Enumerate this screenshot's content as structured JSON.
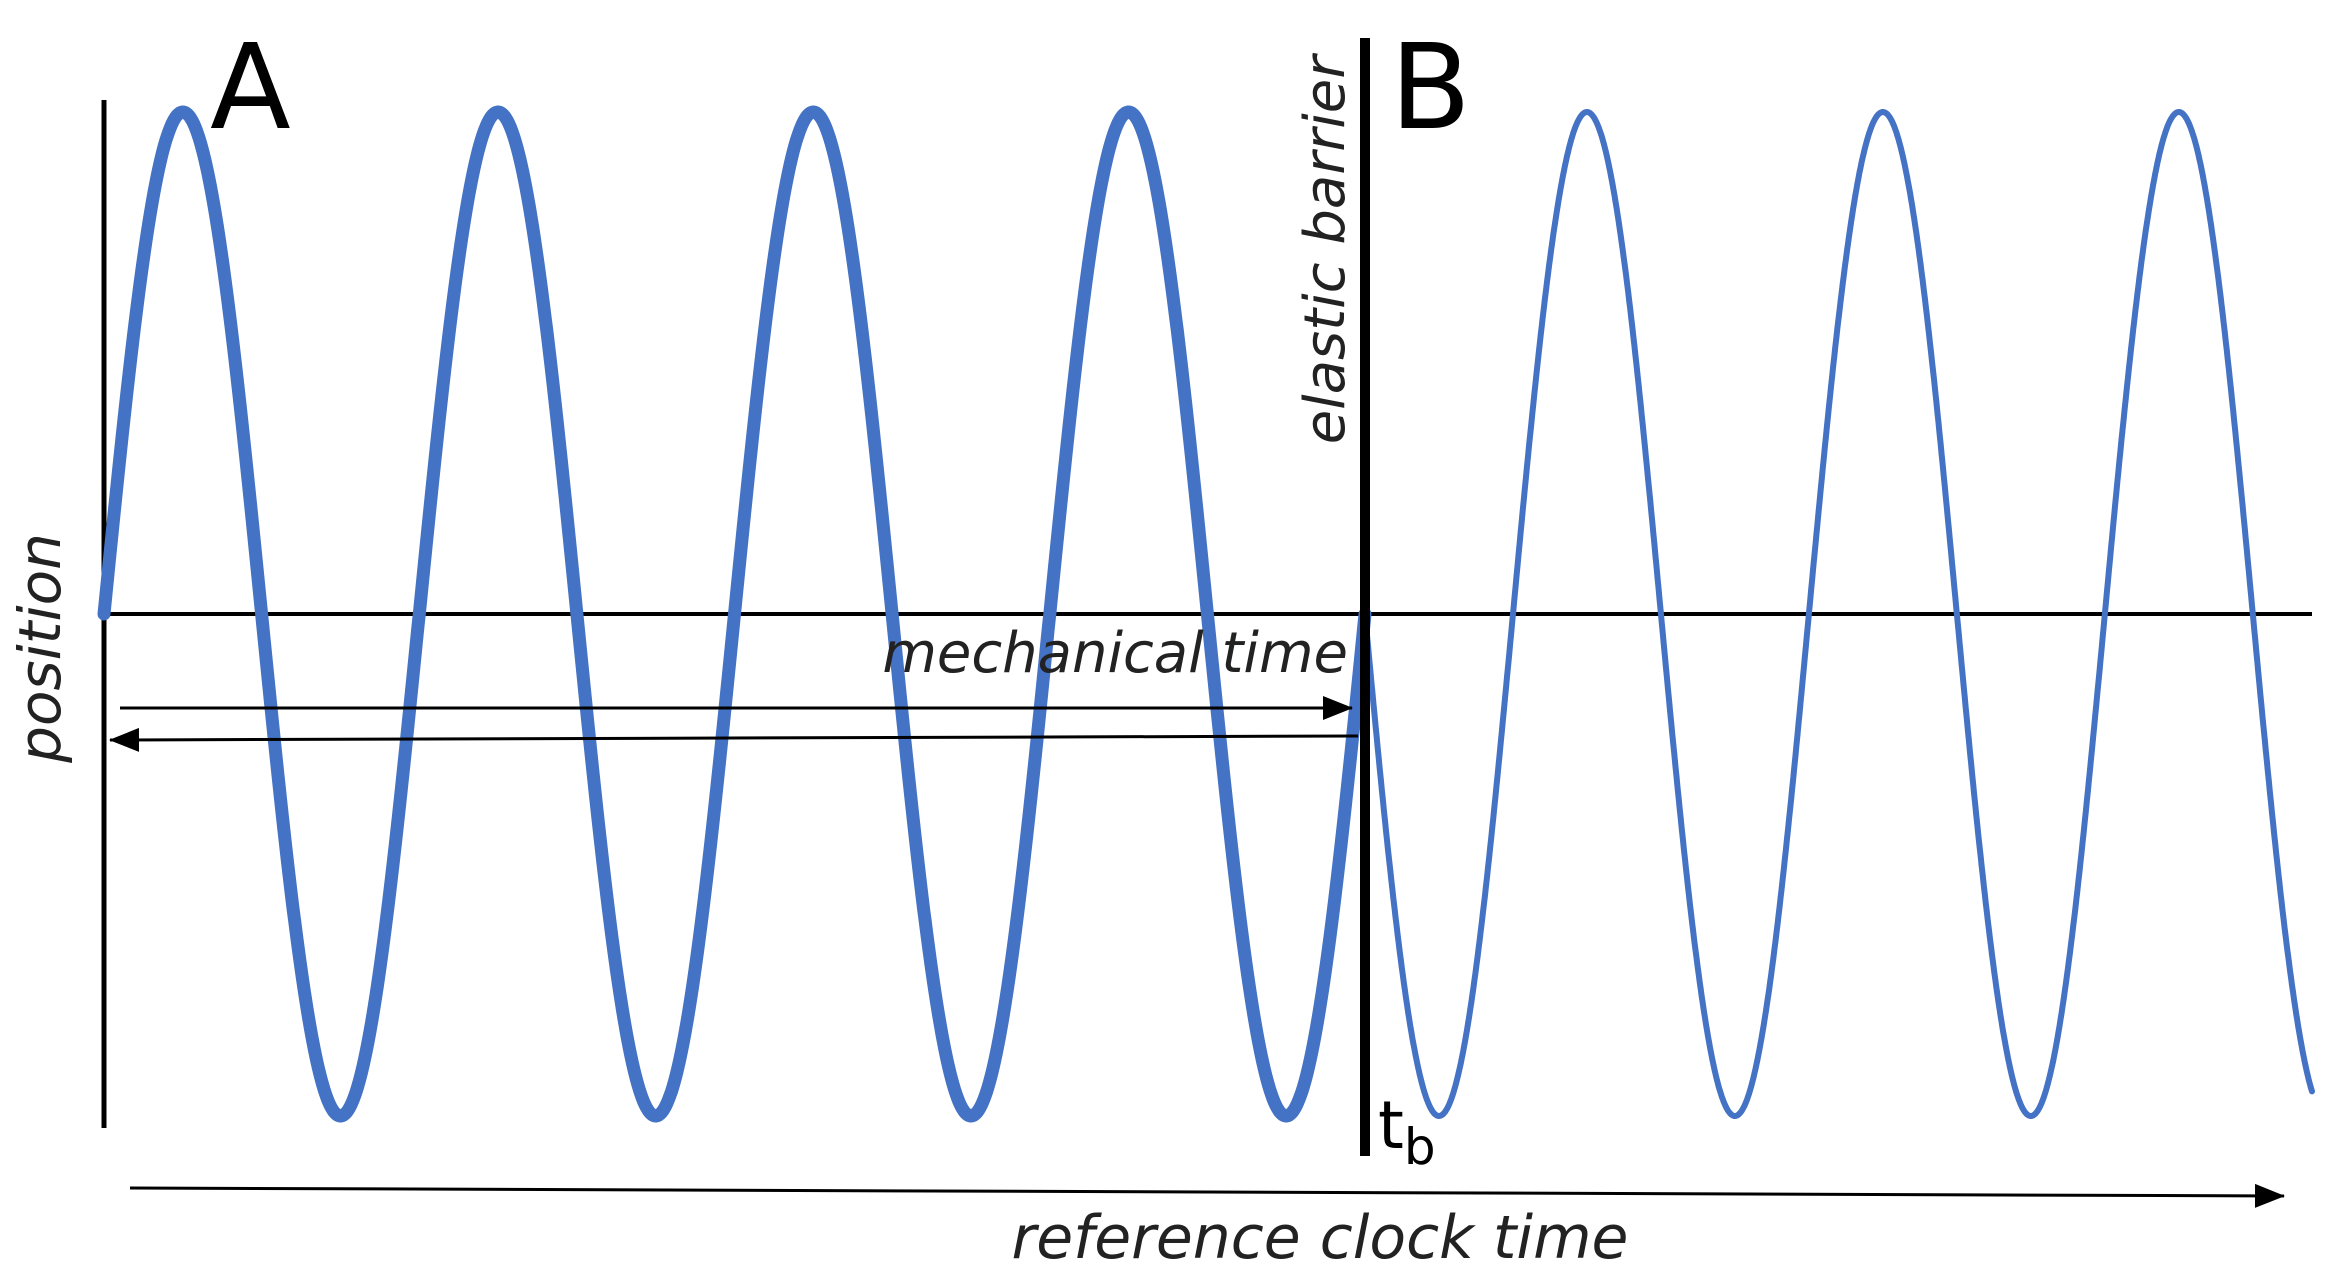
{
  "labels": {
    "panel_a": "A",
    "panel_b": "B",
    "y_axis": "position",
    "x_axis": "reference clock time",
    "barrier": "elastic barrier",
    "mechanical_time": "mechanical time",
    "barrier_time_main": "t",
    "barrier_time_sub": "b"
  },
  "waves": {
    "region_a": {
      "cycles": 4,
      "line": "thick"
    },
    "region_b": {
      "cycles": 3.2,
      "line": "thin"
    }
  },
  "colors": {
    "wave": "#4472C4",
    "axis": "#000000",
    "text": "#222222",
    "background": "#ffffff"
  }
}
